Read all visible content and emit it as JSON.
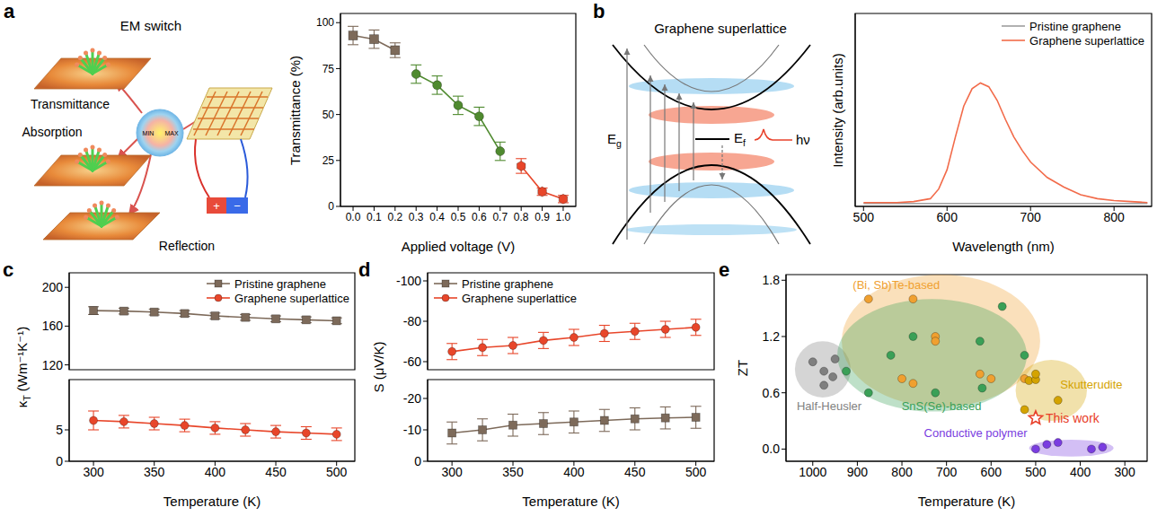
{
  "panel_labels": [
    "a",
    "b",
    "c",
    "d",
    "e"
  ],
  "diagram_a": {
    "title": "EM switch",
    "labels": [
      "Transmittance",
      "Absorption",
      "Reflection"
    ],
    "scale_labels": [
      "MIN",
      "MAX"
    ],
    "battery_labels": [
      "+",
      "−"
    ]
  },
  "diagram_b": {
    "title": "Graphene superlattice",
    "gap_label": "Eg",
    "fermi_label": "Ef",
    "photon_label": "hν"
  },
  "chart_data": [
    {
      "type": "line",
      "xlabel": "Applied voltage (V)",
      "ylabel": "Transmittance (%)",
      "xlim": [
        -0.06,
        1.06
      ],
      "xticks": [
        {
          "value": 0,
          "label": "0.0"
        },
        0.1,
        0.2,
        0.3,
        0.4,
        0.5,
        0.6,
        0.7,
        0.8,
        0.9,
        {
          "value": 1,
          "label": "1.0"
        }
      ],
      "ylim": [
        0,
        105
      ],
      "yticks": [
        0,
        25,
        50,
        75,
        100
      ],
      "series": [
        {
          "color": "#7d6a5a",
          "marker": "square",
          "x": [
            0,
            0.1,
            0.2
          ],
          "values": [
            93,
            91,
            85
          ],
          "errors": [
            5,
            5,
            4
          ]
        },
        {
          "color": "#4f8a2f",
          "marker": "circle",
          "x": [
            0.3,
            0.4,
            0.5,
            0.6,
            0.7
          ],
          "values": [
            72,
            66,
            55,
            49,
            30
          ],
          "errors": [
            5,
            5,
            5,
            5,
            5
          ]
        },
        {
          "color": "#e8462a",
          "marker": "hexagon",
          "x": [
            0.8,
            0.9,
            1.0
          ],
          "values": [
            22,
            8,
            4
          ],
          "errors": [
            4,
            2,
            2
          ]
        }
      ]
    },
    {
      "type": "line",
      "xlabel": "Wavelength (nm)",
      "ylabel": "Intensity (arb.units)",
      "xlim": [
        490,
        845
      ],
      "xticks": [
        500,
        600,
        700,
        800
      ],
      "ylim": [
        0,
        1
      ],
      "tick_labels": "x",
      "legend": "upper right",
      "x": [
        500,
        520,
        540,
        560,
        580,
        590,
        600,
        610,
        620,
        630,
        640,
        650,
        660,
        670,
        680,
        690,
        700,
        720,
        740,
        760,
        780,
        800,
        820,
        840
      ],
      "series": [
        {
          "name": "Pristine graphene",
          "color": "#9e9e9e",
          "values": [
            0.015,
            0.015,
            0.015,
            0.015,
            0.015,
            0.015,
            0.015,
            0.015,
            0.015,
            0.015,
            0.015,
            0.015,
            0.015,
            0.015,
            0.015,
            0.015,
            0.015,
            0.015,
            0.015,
            0.015,
            0.015,
            0.015,
            0.015,
            0.015
          ]
        },
        {
          "name": "Graphene superlattice",
          "color": "#f26b4a",
          "values": [
            0.02,
            0.02,
            0.02,
            0.025,
            0.04,
            0.09,
            0.19,
            0.36,
            0.52,
            0.61,
            0.64,
            0.62,
            0.55,
            0.45,
            0.36,
            0.29,
            0.23,
            0.15,
            0.1,
            0.06,
            0.04,
            0.03,
            0.025,
            0.02
          ]
        }
      ]
    },
    {
      "type": "line",
      "xlabel": "Temperature (K)",
      "ylabel": "κT (Wm⁻¹K⁻¹)",
      "xlim": [
        280,
        515
      ],
      "xticks": [
        300,
        350,
        400,
        450,
        500
      ],
      "legend": "upper right",
      "segments": [
        {
          "ylim": [
            115,
            215
          ],
          "yticks": [
            120,
            160,
            200
          ]
        },
        {
          "ylim": [
            0,
            13
          ],
          "yticks": [
            0,
            5
          ]
        }
      ],
      "x": [
        300,
        325,
        350,
        375,
        400,
        425,
        450,
        475,
        500
      ],
      "series": [
        {
          "name": "Pristine graphene",
          "color": "#7d6a5a",
          "marker": "square",
          "values": [
            176,
            175.5,
            174.5,
            173,
            170.5,
            169,
            167.5,
            166.5,
            165.5
          ],
          "errors": [
            4,
            3,
            3,
            3,
            3,
            3,
            3,
            3,
            3
          ]
        },
        {
          "name": "Graphene superlattice",
          "color": "#e8462a",
          "marker": "circle",
          "values": [
            6.5,
            6.3,
            6,
            5.7,
            5.3,
            5,
            4.7,
            4.5,
            4.3
          ],
          "errors": [
            1.5,
            1,
            1,
            1,
            1,
            1,
            1,
            1,
            1
          ]
        }
      ]
    },
    {
      "type": "line",
      "xlabel": "Temperature (K)",
      "ylabel": "S (μV/K)",
      "xlim": [
        280,
        515
      ],
      "xticks": [
        300,
        350,
        400,
        450,
        500
      ],
      "legend": "upper left",
      "segments": [
        {
          "ylim": [
            -56,
            -104
          ],
          "yticks": [
            -100,
            -80,
            -60
          ]
        },
        {
          "ylim": [
            0,
            -26
          ],
          "yticks": [
            -20,
            -10,
            0
          ]
        }
      ],
      "x": [
        300,
        325,
        350,
        375,
        400,
        425,
        450,
        475,
        500
      ],
      "series": [
        {
          "name": "Pristine graphene",
          "color": "#7d6a5a",
          "marker": "square",
          "values": [
            -9,
            -10,
            -11.5,
            -12,
            -12.5,
            -13,
            -13.5,
            -13.8,
            -14
          ],
          "errors": [
            3.5,
            3.5,
            3.5,
            3.5,
            3.5,
            3.5,
            3.5,
            3.5,
            3.5
          ]
        },
        {
          "name": "Graphene superlattice",
          "color": "#e8462a",
          "marker": "circle",
          "values": [
            -65,
            -67,
            -68,
            -70.5,
            -72,
            -74,
            -75,
            -76,
            -77
          ],
          "errors": [
            4,
            4,
            4,
            4,
            4,
            4,
            4,
            4,
            4
          ]
        }
      ]
    },
    {
      "type": "scatter",
      "xlabel": "Temperature (K)",
      "ylabel": "ZT",
      "xlim": [
        1060,
        250
      ],
      "xticks": [
        1000,
        900,
        800,
        700,
        600,
        500,
        400,
        300
      ],
      "ylim": [
        -0.13,
        1.86
      ],
      "yticks": [
        {
          "value": 0,
          "label": "0.0"
        },
        0.6,
        1.2,
        1.8
      ],
      "groups": [
        {
          "name": "Half-Heusler",
          "color": "#7f7f7f",
          "x_span": [
            1040,
            915
          ],
          "y_span": [
            0.55,
            1.15
          ],
          "x": [
            1000,
            975,
            950,
            975,
            955
          ],
          "values": [
            0.93,
            0.83,
            0.96,
            0.68,
            0.77
          ]
        },
        {
          "name": "(Bi, Sb)Te-based",
          "color": "#f0a030",
          "x_span": [
            935,
            490
          ],
          "y_span": [
            0.45,
            1.86
          ],
          "x": [
            875,
            775,
            725,
            725,
            800,
            775,
            600,
            525,
            625
          ],
          "values": [
            1.6,
            1.6,
            1.2,
            1.15,
            0.75,
            0.7,
            0.75,
            0.75,
            0.8
          ]
        },
        {
          "name": "SnS(Se)-based",
          "color": "#3aa057",
          "x_span": [
            945,
            520
          ],
          "y_span": [
            0.4,
            1.6
          ],
          "x": [
            925,
            875,
            825,
            775,
            725,
            625,
            575,
            525,
            620
          ],
          "values": [
            0.83,
            0.6,
            1.0,
            1.2,
            0.6,
            1.15,
            1.52,
            1.0,
            0.65
          ]
        },
        {
          "name": "Skutterudite",
          "color": "#d4a300",
          "x_span": [
            545,
            385
          ],
          "y_span": [
            0.3,
            0.95
          ],
          "x": [
            525,
            515,
            500,
            500,
            450
          ],
          "values": [
            0.42,
            0.73,
            0.74,
            0.8,
            0.52
          ]
        },
        {
          "name": "Conductive polymer",
          "color": "#7a3de0",
          "x_span": [
            515,
            325
          ],
          "y_span": [
            -0.08,
            0.1
          ],
          "x": [
            500,
            475,
            450,
            375,
            350
          ],
          "values": [
            0.0,
            0.05,
            0.07,
            0.0,
            0.02
          ]
        }
      ],
      "series": [
        {
          "name": "This work",
          "color": "#e8402a",
          "marker": "star",
          "x": [
            500
          ],
          "values": [
            0.33
          ]
        }
      ]
    }
  ]
}
